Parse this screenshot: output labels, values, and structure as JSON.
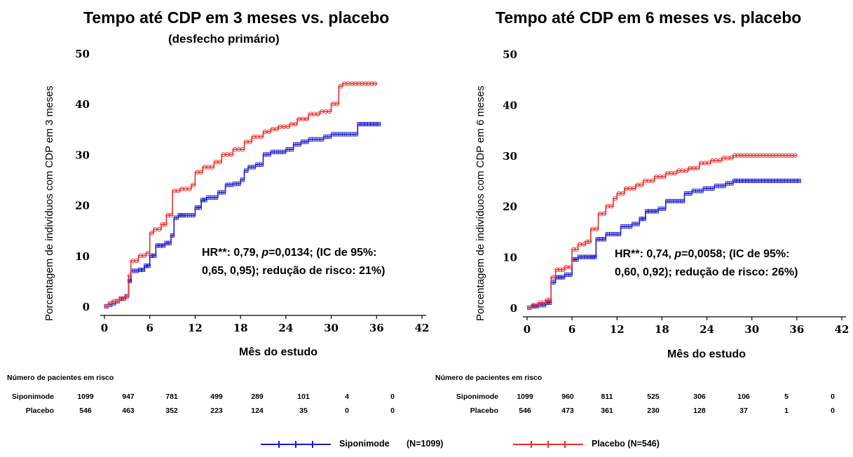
{
  "colors": {
    "siponimode": "#1a1acc",
    "placebo": "#e8302a"
  },
  "panels": [
    {
      "title": "Tempo até CDP em 3 meses vs. placebo",
      "subtitle": "(desfecho primário)",
      "ylabel": "Porcentagem de indivíduos com CDP em 3 meses",
      "xlabel": "Mês do estudo",
      "hr_line1_pre": "HR**: 0,79, ",
      "hr_p": "p",
      "hr_line1_post": "=0,0134; (IC de 95%:",
      "hr_line2": "0,65, 0,95); redução de risco: 21%)",
      "risk_title": "Número de pacientes em risco",
      "risk": [
        {
          "name": "Siponimode",
          "values": [
            "1099",
            "947",
            "781",
            "499",
            "289",
            "101",
            "4",
            "0"
          ]
        },
        {
          "name": "Placebo",
          "values": [
            "546",
            "463",
            "352",
            "223",
            "124",
            "35",
            "0",
            "0"
          ]
        }
      ]
    },
    {
      "title": "Tempo até CDP em 6 meses vs. placebo",
      "subtitle": "",
      "ylabel": "Porcentagem de indivíduos com CDP em 6 meses",
      "xlabel": "Mês do estudo",
      "hr_line1_pre": "HR**: 0,74, ",
      "hr_p": "p",
      "hr_line1_post": "=0,0058; (IC de 95%:",
      "hr_line2": "0,60, 0,92); redução de risco: 26%)",
      "risk_title": "Número de pacientes em risco",
      "risk": [
        {
          "name": "Siponimode",
          "values": [
            "1099",
            "960",
            "811",
            "525",
            "306",
            "106",
            "5",
            "0"
          ]
        },
        {
          "name": "Placebo",
          "values": [
            "546",
            "473",
            "361",
            "230",
            "128",
            "37",
            "1",
            "0"
          ]
        }
      ]
    }
  ],
  "legend": {
    "siponimode_label": "Siponimode",
    "siponimode_n": "(N=1099)",
    "placebo_label": "Placebo (N=546)"
  },
  "chart_data": [
    {
      "type": "line",
      "title": "Tempo até CDP em 3 meses vs. placebo",
      "subtitle": "(desfecho primário)",
      "xlabel": "Mês do estudo",
      "ylabel": "Porcentagem de indivíduos com CDP em 3 meses",
      "xlim": [
        0,
        42
      ],
      "ylim": [
        0,
        50
      ],
      "xticks": [
        "0",
        "6",
        "12",
        "18",
        "24",
        "30",
        "36",
        "42"
      ],
      "yticks": [
        "0",
        "10",
        "20",
        "30",
        "40",
        "50"
      ],
      "step": true,
      "series": [
        {
          "name": "Siponimode",
          "color": "#1a1acc",
          "x": [
            0,
            0.5,
            1,
            1.5,
            2,
            2.7,
            3.2,
            3.5,
            4.5,
            5.3,
            6,
            6.8,
            8,
            8.8,
            9.2,
            9.8,
            10.5,
            12,
            12.8,
            13.5,
            15,
            16,
            17,
            18,
            18.5,
            19,
            20,
            21,
            22,
            23,
            24,
            25,
            26,
            27,
            28,
            29,
            30,
            31,
            32,
            33.5,
            36.5
          ],
          "y": [
            0,
            0.3,
            0.6,
            1,
            1.5,
            2,
            5,
            7,
            7.2,
            8,
            10,
            12,
            12.5,
            14,
            17.5,
            18,
            18,
            19.5,
            21,
            21.5,
            22.5,
            24,
            24.2,
            25,
            26.8,
            27.5,
            28,
            30,
            30.5,
            30.5,
            31,
            32,
            32.5,
            33,
            33,
            33.5,
            34,
            34,
            34,
            36,
            36
          ]
        },
        {
          "name": "Placebo",
          "color": "#e8302a",
          "x": [
            0,
            0.5,
            1,
            2,
            2.8,
            3.2,
            3.5,
            4.5,
            5.5,
            6,
            6.5,
            7.5,
            8.2,
            9,
            10,
            11.5,
            12,
            13,
            14.5,
            15.5,
            17,
            18.5,
            19.5,
            21,
            22,
            23,
            24.5,
            25.5,
            27,
            28.5,
            30,
            31,
            31.5,
            33,
            36
          ],
          "y": [
            0,
            0.6,
            1,
            1.5,
            2,
            6,
            9,
            10,
            10.5,
            14.5,
            15.2,
            16.2,
            18,
            22.8,
            23.2,
            24,
            26.5,
            27.5,
            28.5,
            30,
            31,
            32.5,
            33.5,
            34.5,
            35,
            35.5,
            36,
            37,
            38,
            38.5,
            40,
            43.5,
            44,
            44,
            44
          ]
        }
      ]
    },
    {
      "type": "line",
      "title": "Tempo até CDP em 6 meses vs. placebo",
      "xlabel": "Mês do estudo",
      "ylabel": "Porcentagem de indivíduos com CDP em 6 meses",
      "xlim": [
        0,
        42
      ],
      "ylim": [
        0,
        50
      ],
      "xticks": [
        "0",
        "6",
        "12",
        "18",
        "24",
        "30",
        "36",
        "42"
      ],
      "yticks": [
        "0",
        "10",
        "20",
        "30",
        "40",
        "50"
      ],
      "step": true,
      "series": [
        {
          "name": "Siponimode",
          "color": "#1a1acc",
          "x": [
            0,
            0.6,
            1.5,
            2.5,
            3.2,
            3.8,
            5,
            6,
            6.8,
            8.5,
            9.2,
            10.5,
            12,
            12.5,
            14,
            15,
            15.8,
            17.5,
            18.5,
            19.5,
            21,
            22,
            23.5,
            25,
            26.5,
            27.5,
            30,
            33,
            36.5
          ],
          "y": [
            0,
            0.3,
            0.5,
            1,
            5,
            6,
            6.5,
            9.5,
            10,
            10,
            13.5,
            14.5,
            14.5,
            16,
            16.5,
            17.5,
            19,
            19.5,
            21,
            21,
            22.5,
            23,
            23.5,
            24,
            24.5,
            25,
            25,
            25,
            25
          ]
        },
        {
          "name": "Placebo",
          "color": "#e8302a",
          "x": [
            0,
            0.6,
            1.5,
            2.5,
            3.2,
            3.8,
            5,
            6,
            6.8,
            7.8,
            8.5,
            9.5,
            10.5,
            11.5,
            12,
            13,
            14.5,
            15.5,
            17,
            18.5,
            20,
            21.5,
            23,
            24.5,
            26,
            27.5,
            30,
            33,
            36
          ],
          "y": [
            0,
            0.5,
            1,
            1.5,
            6,
            7.5,
            8,
            11.5,
            12.5,
            13,
            15.5,
            18.5,
            20,
            21.5,
            22.5,
            23.5,
            24.2,
            25,
            25.8,
            26.5,
            27,
            27.5,
            28.5,
            29,
            29.5,
            30,
            30,
            30,
            30
          ]
        }
      ]
    }
  ]
}
